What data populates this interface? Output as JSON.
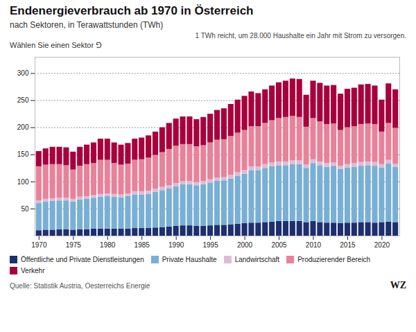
{
  "chart_data": {
    "type": "bar",
    "stacked": true,
    "title": "Endenergieverbrauch ab 1970 in Österreich",
    "subtitle": "nach Sektoren, in Terawattstunden (TWh)",
    "annotations": [
      "1 TWh reicht, um 28.000 Haushalte ein Jahr mit Strom zu versorgen.",
      "Wählen Sie einen Sektor ⅁",
      "Quelle: Statistik Austria, Oesterreichs Energie",
      "WZ"
    ],
    "categories": [
      1970,
      1971,
      1972,
      1973,
      1974,
      1975,
      1976,
      1977,
      1978,
      1979,
      1980,
      1981,
      1982,
      1983,
      1984,
      1985,
      1986,
      1987,
      1988,
      1989,
      1990,
      1991,
      1992,
      1993,
      1994,
      1995,
      1996,
      1997,
      1998,
      1999,
      2000,
      2001,
      2002,
      2003,
      2004,
      2005,
      2006,
      2007,
      2008,
      2009,
      2010,
      2011,
      2012,
      2013,
      2014,
      2015,
      2016,
      2017,
      2018,
      2019,
      2020,
      2021,
      2022
    ],
    "xticks": [
      1970,
      1975,
      1980,
      1985,
      1990,
      1995,
      2000,
      2005,
      2010,
      2015,
      2020
    ],
    "series": [
      {
        "name": "Öffentliche und Private Dienstleistungen",
        "color": "#1e2f6e",
        "values": [
          10,
          11,
          11,
          12,
          12,
          11,
          12,
          12,
          13,
          13,
          13,
          13,
          13,
          13,
          14,
          14,
          14,
          15,
          16,
          17,
          18,
          19,
          19,
          18,
          18,
          19,
          20,
          20,
          21,
          22,
          23,
          24,
          24,
          25,
          26,
          27,
          27,
          27,
          27,
          25,
          27,
          25,
          24,
          24,
          23,
          24,
          24,
          25,
          25,
          24,
          25,
          26,
          25
        ]
      },
      {
        "name": "Private Haushalte",
        "color": "#7aafd4",
        "values": [
          50,
          52,
          53,
          53,
          53,
          52,
          55,
          56,
          57,
          59,
          60,
          59,
          58,
          60,
          62,
          62,
          63,
          66,
          68,
          70,
          73,
          76,
          76,
          75,
          77,
          79,
          81,
          82,
          84,
          88,
          91,
          97,
          97,
          100,
          102,
          103,
          103,
          105,
          105,
          100,
          107,
          105,
          103,
          105,
          100,
          102,
          103,
          104,
          105,
          105,
          101,
          107,
          102
        ]
      },
      {
        "name": "Landwirtschaft",
        "color": "#ddbcd5",
        "values": [
          5,
          5,
          5,
          5,
          5,
          5,
          5,
          5,
          5,
          5,
          5,
          5,
          5,
          5,
          6,
          6,
          6,
          6,
          6,
          6,
          6,
          6,
          6,
          6,
          6,
          6,
          6,
          6,
          7,
          7,
          7,
          7,
          7,
          7,
          7,
          7,
          7,
          7,
          7,
          6,
          7,
          7,
          7,
          6,
          6,
          6,
          7,
          7,
          7,
          7,
          6,
          7,
          6
        ]
      },
      {
        "name": "Produzierender Bereich",
        "color": "#e8829a",
        "values": [
          63,
          63,
          63,
          62,
          60,
          54,
          57,
          59,
          59,
          63,
          62,
          57,
          55,
          55,
          58,
          59,
          61,
          62,
          64,
          67,
          69,
          68,
          68,
          66,
          66,
          68,
          70,
          70,
          72,
          73,
          74,
          74,
          74,
          76,
          78,
          80,
          82,
          82,
          80,
          70,
          76,
          74,
          72,
          72,
          66,
          68,
          68,
          70,
          70,
          70,
          60,
          68,
          66
        ]
      },
      {
        "name": "Verkehr",
        "color": "#a8003c",
        "values": [
          28,
          30,
          32,
          32,
          33,
          33,
          35,
          36,
          38,
          39,
          39,
          38,
          37,
          38,
          39,
          40,
          41,
          43,
          46,
          48,
          50,
          51,
          51,
          50,
          52,
          53,
          55,
          57,
          59,
          61,
          63,
          64,
          61,
          62,
          64,
          66,
          67,
          69,
          70,
          59,
          69,
          71,
          71,
          71,
          67,
          71,
          71,
          73,
          73,
          71,
          59,
          73,
          71
        ]
      }
    ],
    "ylim": [
      0,
      330
    ],
    "yticks": [
      50,
      100,
      150,
      200,
      250,
      300
    ],
    "grid": true,
    "legend": "bottom"
  }
}
